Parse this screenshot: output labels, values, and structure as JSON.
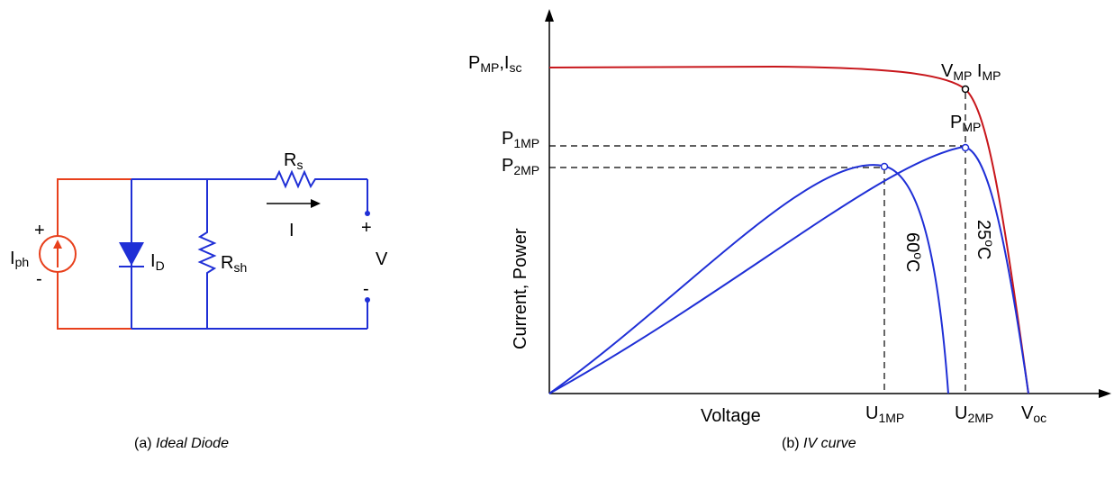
{
  "circuit": {
    "caption_prefix": "(a)",
    "caption_italic": "Ideal Diode",
    "source_label": "I",
    "source_sub": "ph",
    "source_plus": "+",
    "source_minus": "-",
    "diode_label": "I",
    "diode_sub": "D",
    "shunt_label": "R",
    "shunt_sub": "sh",
    "series_label": "R",
    "series_sub": "s",
    "current_label": "I",
    "out_plus": "+",
    "out_minus": "-",
    "voltage_label": "V",
    "colors": {
      "source": "#e8401c",
      "wire": "#1f2fd6"
    }
  },
  "chart_data": {
    "type": "line",
    "caption_prefix": "(b)",
    "caption_italic": "IV curve",
    "xlabel": "Voltage",
    "ylabel": "Current, Power",
    "y_ticks": [
      {
        "main": "P",
        "sub": "MP",
        "tail": ",I",
        "tail_sub": "sc"
      },
      {
        "main": "P",
        "sub": "1MP"
      },
      {
        "main": "P",
        "sub": "2MP"
      }
    ],
    "x_ticks": [
      {
        "main": "U",
        "sub": "1MP"
      },
      {
        "main": "U",
        "sub": "2MP"
      },
      {
        "main": "V",
        "sub": "oc"
      }
    ],
    "annotations": {
      "mpp_iv": {
        "a": "V",
        "a_sub": "MP",
        "b": "I",
        "b_sub": "MP"
      },
      "pmp": {
        "main": "P",
        "sub": "MP"
      },
      "t60": {
        "num": "60",
        "sup": "o",
        "unit": "C"
      },
      "t25": {
        "num": "25",
        "sup": "o",
        "unit": "C"
      }
    },
    "series": [
      {
        "kind": "iv",
        "color": "#c8171c"
      },
      {
        "kind": "power",
        "temp": "25°C",
        "color": "#1f2fd6"
      },
      {
        "kind": "power",
        "temp": "60°C",
        "color": "#1f2fd6"
      }
    ]
  }
}
